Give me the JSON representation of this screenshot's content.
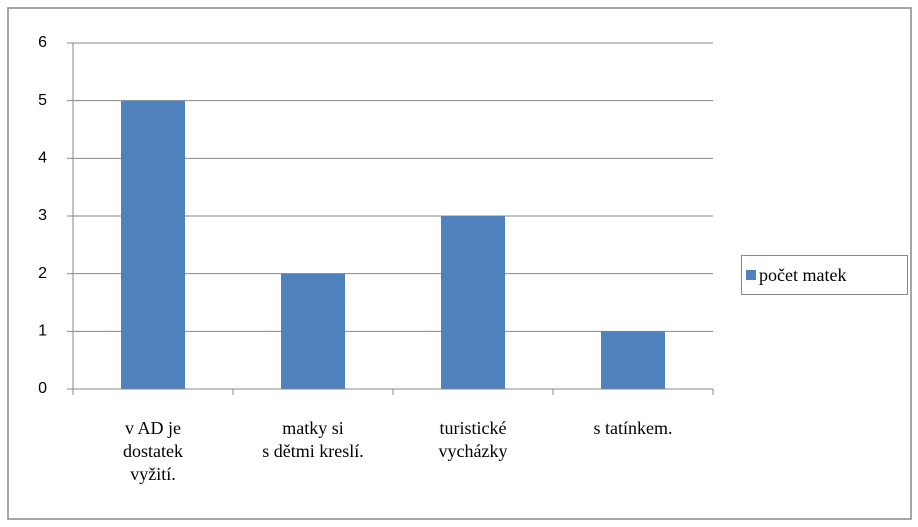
{
  "chart_data": {
    "type": "bar",
    "categories": [
      "v  AD je\ndostatek\nvyžití.",
      "matky si\ns dětmi kreslí.",
      "turistické\nvycházky",
      "s tatínkem."
    ],
    "series": [
      {
        "name": "počet matek",
        "color": "#4f81bd",
        "values": [
          5,
          2,
          3,
          1
        ]
      }
    ],
    "ylim": [
      0,
      6
    ],
    "yticks": [
      0,
      1,
      2,
      3,
      4,
      5,
      6
    ],
    "grid": true,
    "legend": "right"
  }
}
